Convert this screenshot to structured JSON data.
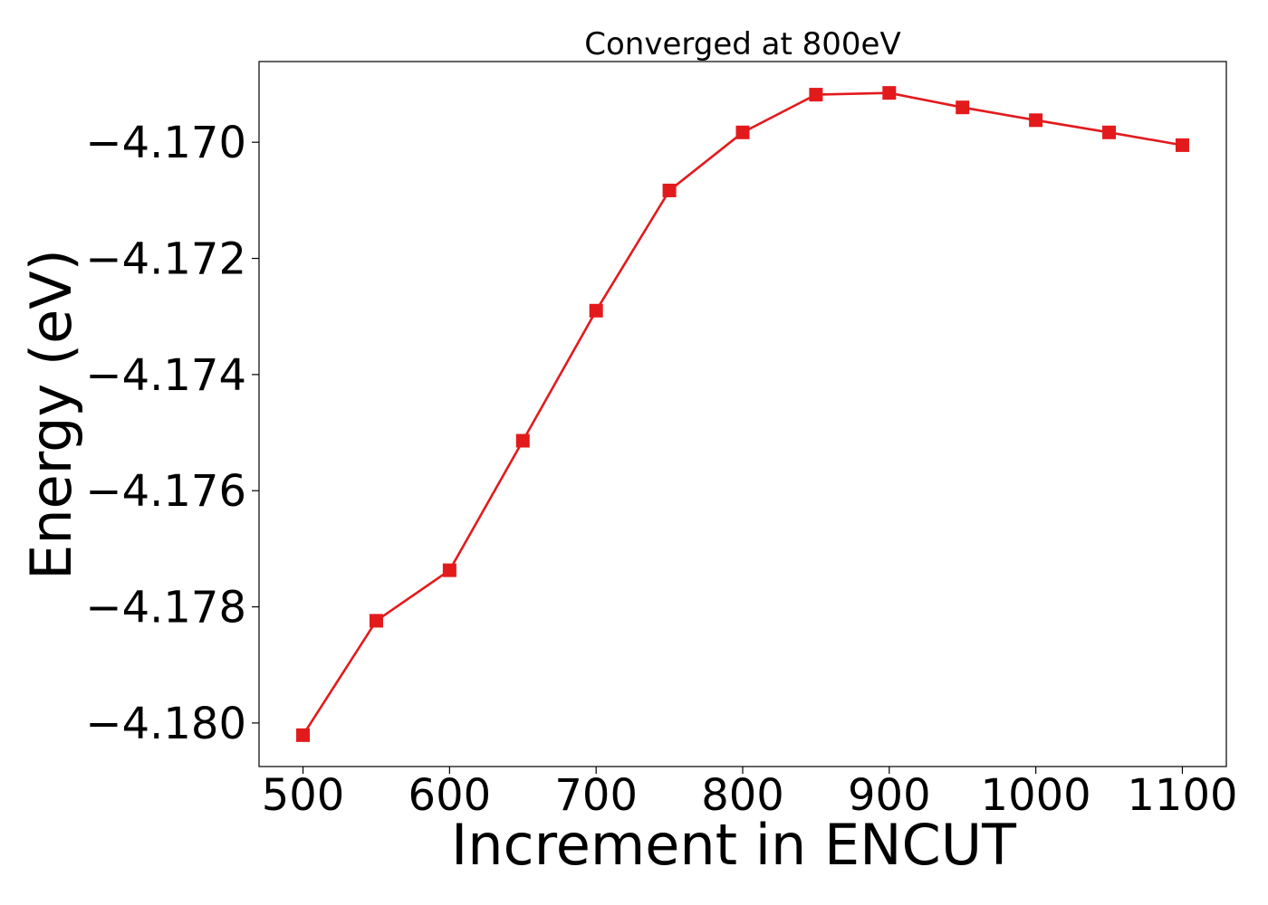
{
  "chart_data": {
    "type": "line",
    "title": "Converged at 800eV",
    "xlabel": "Increment in ENCUT",
    "ylabel": "Energy (eV)",
    "xlim": [
      470,
      1130
    ],
    "ylim": [
      -4.18075,
      -4.16861
    ],
    "xticks": [
      500,
      600,
      700,
      800,
      900,
      1000,
      1100
    ],
    "xtick_labels": [
      "500",
      "600",
      "700",
      "800",
      "900",
      "1000",
      "1100"
    ],
    "yticks": [
      -4.17,
      -4.172,
      -4.174,
      -4.176,
      -4.178,
      -4.18
    ],
    "ytick_labels": [
      "−4.170",
      "−4.172",
      "−4.174",
      "−4.176",
      "−4.178",
      "−4.180"
    ],
    "grid": false,
    "series": [
      {
        "color": "#e31a1c",
        "marker": "square",
        "x": [
          500,
          550,
          600,
          650,
          700,
          750,
          800,
          850,
          900,
          950,
          1000,
          1050,
          1100
        ],
        "y": [
          -4.18021,
          -4.17824,
          -4.17737,
          -4.17514,
          -4.1729,
          -4.17083,
          -4.16983,
          -4.16918,
          -4.16915,
          -4.1694,
          -4.16962,
          -4.16983,
          -4.17005
        ]
      }
    ]
  }
}
